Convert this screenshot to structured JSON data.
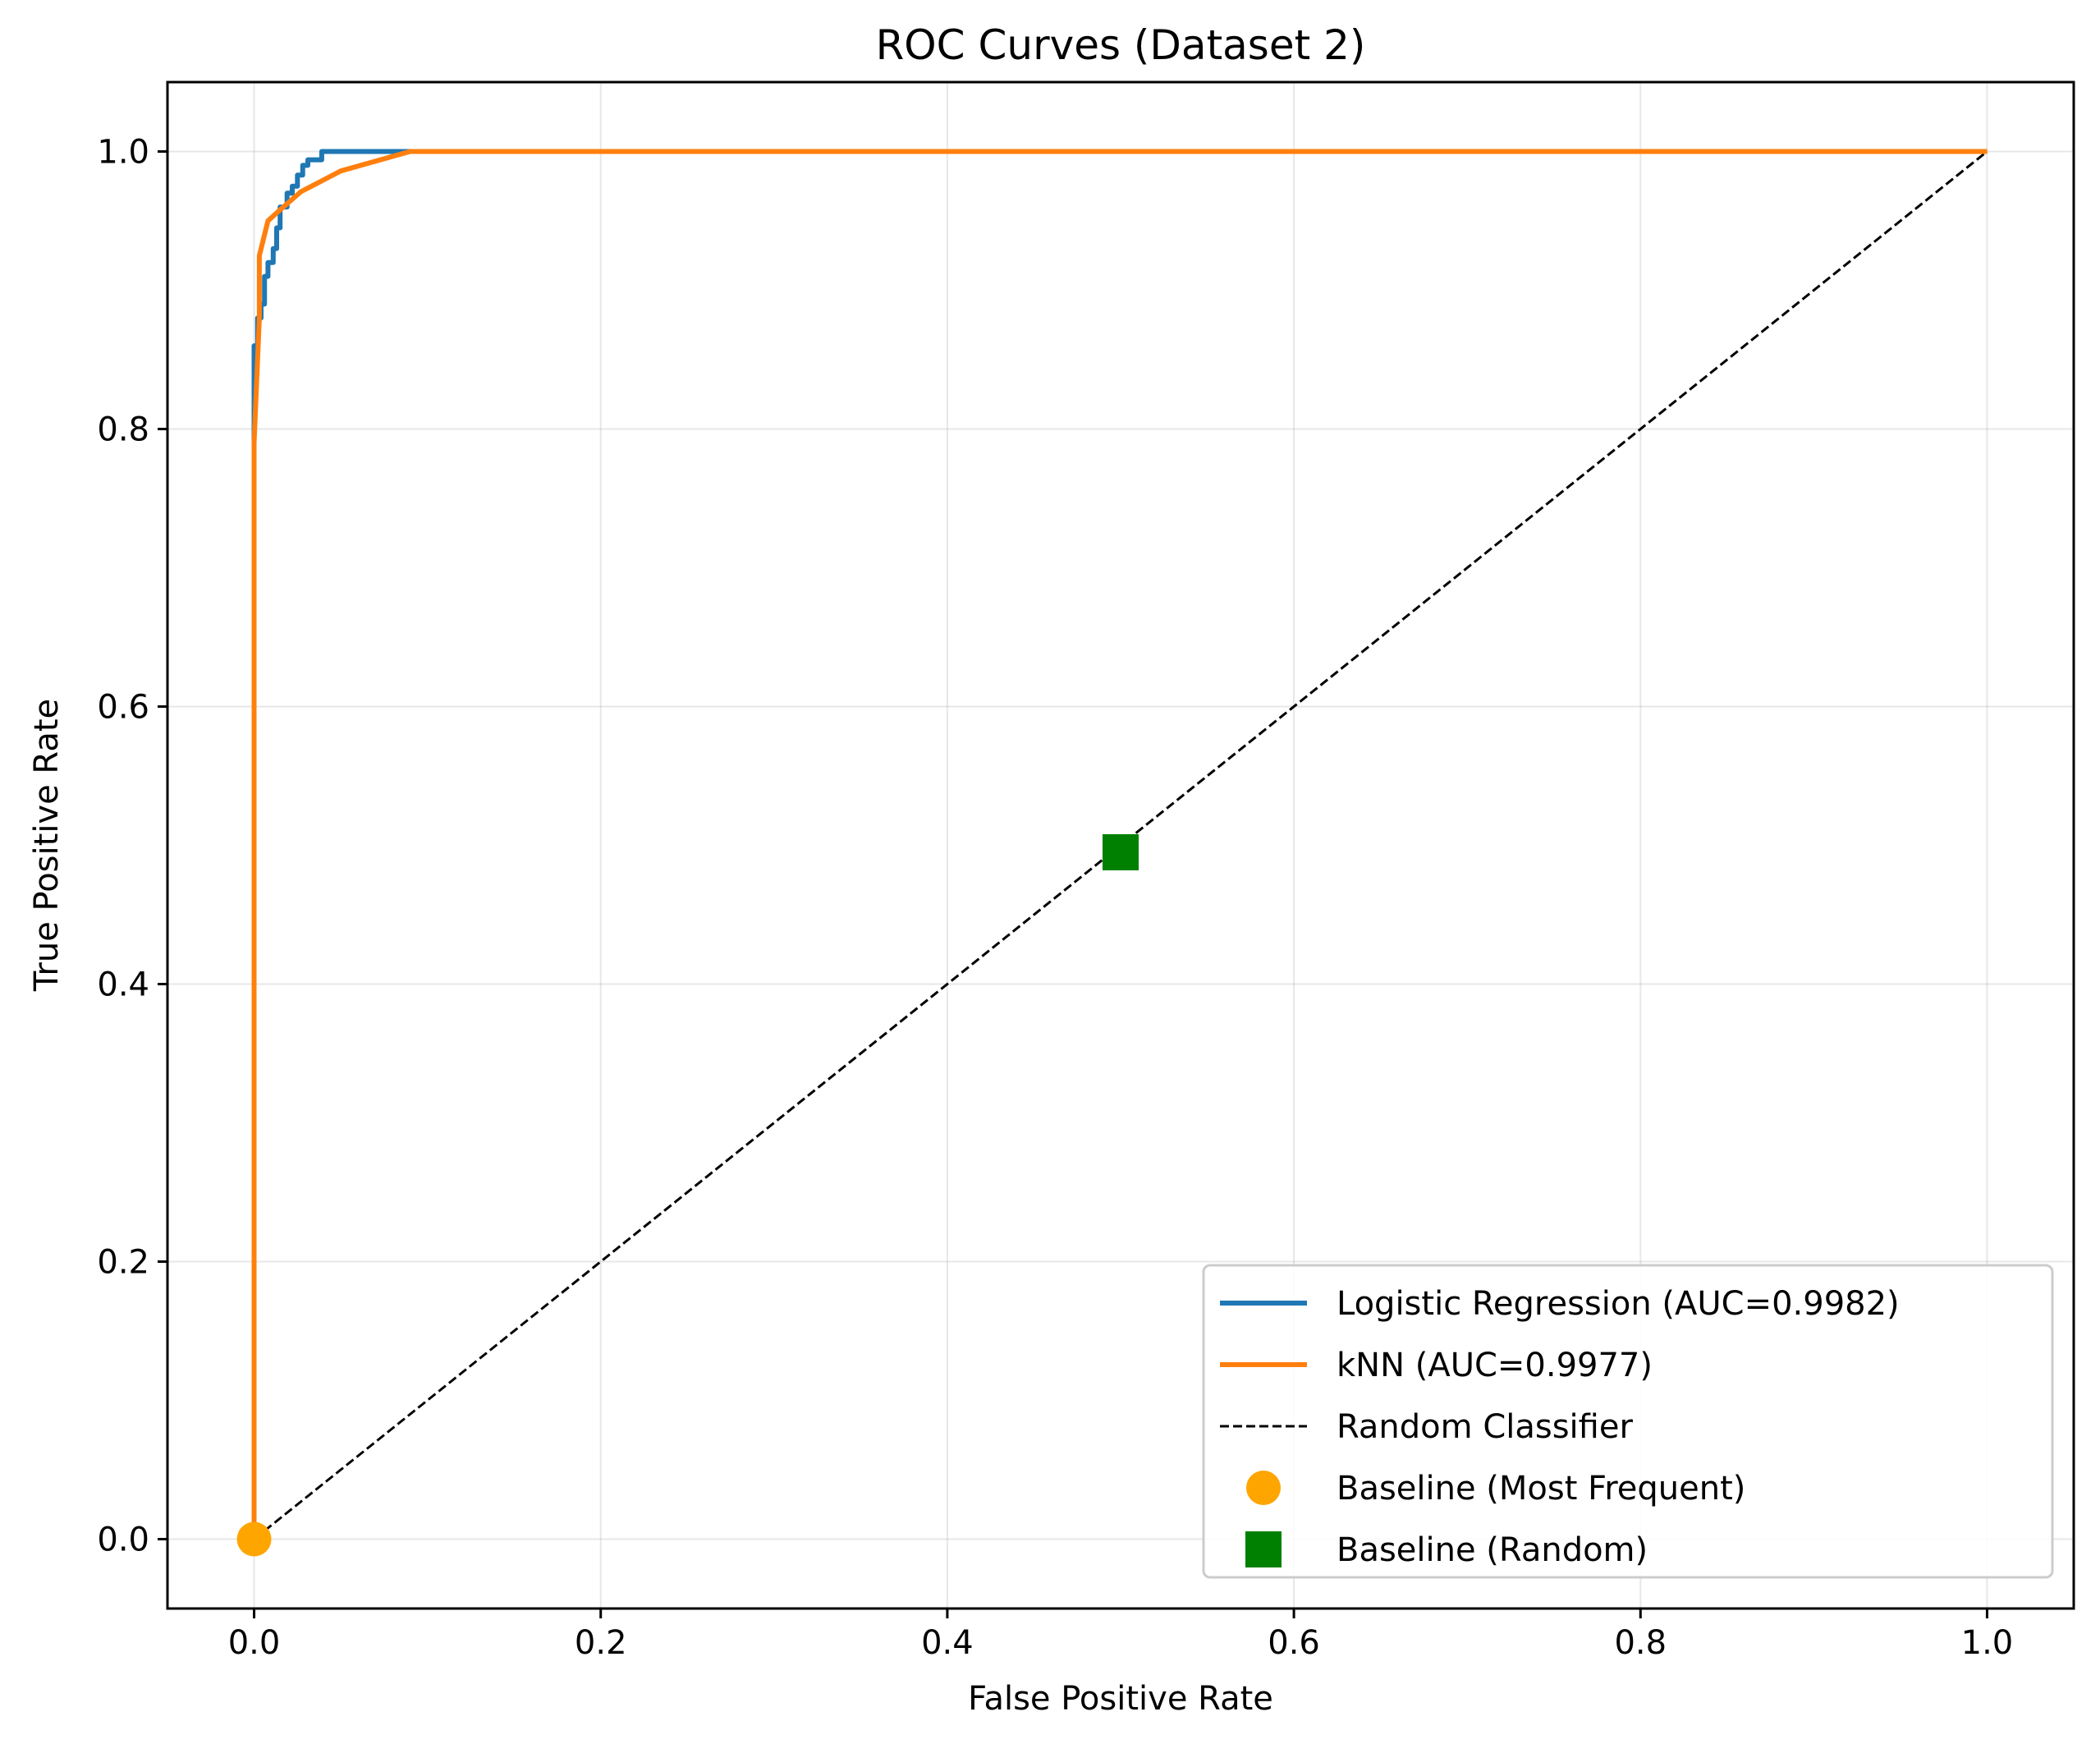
{
  "chart_data": {
    "type": "line",
    "title": "ROC Curves (Dataset 2)",
    "xlabel": "False Positive Rate",
    "ylabel": "True Positive Rate",
    "xlim": [
      -0.05,
      1.05
    ],
    "ylim": [
      -0.05,
      1.05
    ],
    "grid": true,
    "legend_position": "lower-right",
    "x_ticks": [
      0.0,
      0.2,
      0.4,
      0.6,
      0.8,
      1.0
    ],
    "x_tick_labels": [
      "0.0",
      "0.2",
      "0.4",
      "0.6",
      "0.8",
      "1.0"
    ],
    "y_ticks": [
      0.0,
      0.2,
      0.4,
      0.6,
      0.8,
      1.0
    ],
    "y_tick_labels": [
      "0.0",
      "0.2",
      "0.4",
      "0.6",
      "0.8",
      "1.0"
    ],
    "series": [
      {
        "name": "Logistic Regression (AUC=0.9982)",
        "kind": "line",
        "color": "#1f77b4",
        "dash": "solid",
        "points": [
          [
            0.0,
            0.0
          ],
          [
            0.0,
            0.86
          ],
          [
            0.002,
            0.86
          ],
          [
            0.002,
            0.88
          ],
          [
            0.004,
            0.88
          ],
          [
            0.004,
            0.89
          ],
          [
            0.006,
            0.89
          ],
          [
            0.006,
            0.91
          ],
          [
            0.008,
            0.91
          ],
          [
            0.008,
            0.92
          ],
          [
            0.011,
            0.92
          ],
          [
            0.011,
            0.93
          ],
          [
            0.013,
            0.93
          ],
          [
            0.013,
            0.945
          ],
          [
            0.015,
            0.945
          ],
          [
            0.015,
            0.96
          ],
          [
            0.019,
            0.96
          ],
          [
            0.019,
            0.97
          ],
          [
            0.022,
            0.97
          ],
          [
            0.022,
            0.975
          ],
          [
            0.025,
            0.975
          ],
          [
            0.025,
            0.983
          ],
          [
            0.028,
            0.983
          ],
          [
            0.028,
            0.99
          ],
          [
            0.031,
            0.99
          ],
          [
            0.031,
            0.994
          ],
          [
            0.039,
            0.994
          ],
          [
            0.039,
            1.0
          ],
          [
            1.0,
            1.0
          ]
        ]
      },
      {
        "name": "kNN (AUC=0.9977)",
        "kind": "line",
        "color": "#ff7f0e",
        "dash": "solid",
        "points": [
          [
            0.0,
            0.0
          ],
          [
            0.0,
            0.79
          ],
          [
            0.003,
            0.88
          ],
          [
            0.003,
            0.925
          ],
          [
            0.008,
            0.95
          ],
          [
            0.015,
            0.958
          ],
          [
            0.027,
            0.971
          ],
          [
            0.05,
            0.986
          ],
          [
            0.09,
            1.0
          ],
          [
            1.0,
            1.0
          ]
        ]
      },
      {
        "name": "Random Classifier",
        "kind": "line",
        "color": "#000000",
        "dash": "dashed",
        "points": [
          [
            0.0,
            0.0
          ],
          [
            1.0,
            1.0
          ]
        ]
      },
      {
        "name": "Baseline (Most Frequent)",
        "kind": "marker",
        "marker": "circle",
        "color": "#ffa500",
        "points": [
          [
            0.0,
            0.0
          ]
        ]
      },
      {
        "name": "Baseline (Random)",
        "kind": "marker",
        "marker": "square",
        "color": "#008000",
        "points": [
          [
            0.5,
            0.495
          ]
        ]
      }
    ]
  }
}
